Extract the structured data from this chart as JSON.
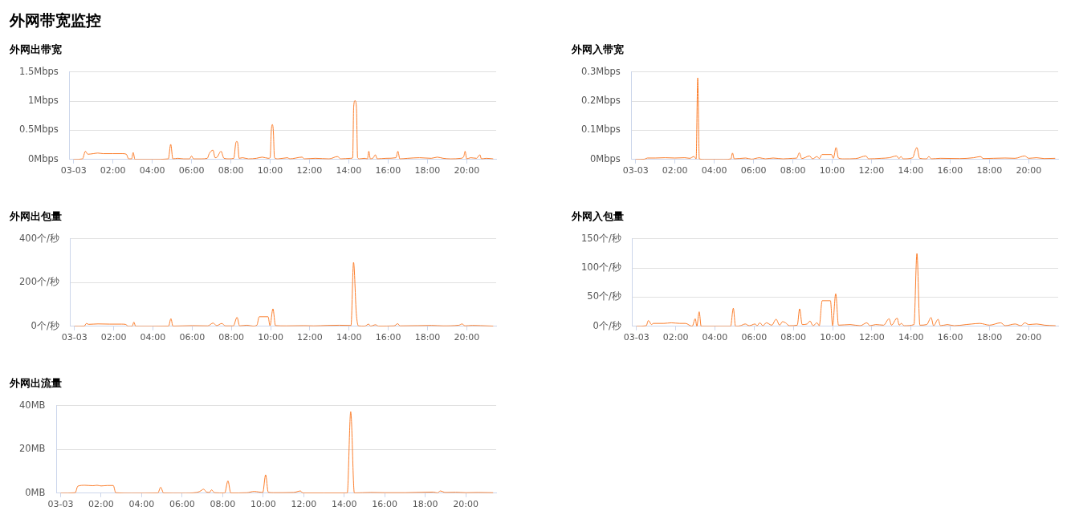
{
  "chart_data": [
    {
      "type": "other",
      "title": "外网带宽监控"
    },
    {
      "type": "line",
      "title": "外网出带宽",
      "color": "#fb7e2c",
      "grid": "y",
      "xlim": [
        -0.2,
        21.5
      ],
      "ylim": [
        0,
        1.5
      ],
      "xticks": [
        {
          "value": 0,
          "label": "03-03"
        },
        {
          "value": 2,
          "label": "02:00"
        },
        {
          "value": 4,
          "label": "04:00"
        },
        {
          "value": 6,
          "label": "06:00"
        },
        {
          "value": 8,
          "label": "08:00"
        },
        {
          "value": 10,
          "label": "10:00"
        },
        {
          "value": 12,
          "label": "12:00"
        },
        {
          "value": 14,
          "label": "14:00"
        },
        {
          "value": 16,
          "label": "16:00"
        },
        {
          "value": 18,
          "label": "18:00"
        },
        {
          "value": 20,
          "label": "20:00"
        }
      ],
      "yticks": [
        {
          "value": 0,
          "label": "0Mbps"
        },
        {
          "value": 0.5,
          "label": "0.5Mbps"
        },
        {
          "value": 1,
          "label": "1Mbps"
        },
        {
          "value": 1.5,
          "label": "1.5Mbps"
        }
      ],
      "x": [
        0,
        0.45,
        0.6,
        0.72,
        1.0,
        1.23,
        1.5,
        2.0,
        2.5,
        2.68,
        2.8,
        2.95,
        3.03,
        3.12,
        4.0,
        4.82,
        4.94,
        5.05,
        5.3,
        5.6,
        5.9,
        6.0,
        6.1,
        6.5,
        6.8,
        6.9,
        7.09,
        7.2,
        7.3,
        7.5,
        7.65,
        7.9,
        8.15,
        8.25,
        8.3,
        8.35,
        8.42,
        8.6,
        8.9,
        9.3,
        9.6,
        9.9,
        10.0,
        10.06,
        10.11,
        10.16,
        10.22,
        10.4,
        10.88,
        11.0,
        11.62,
        11.75,
        12.3,
        13.0,
        13.42,
        13.6,
        14.1,
        14.2,
        14.25,
        14.32,
        14.39,
        14.45,
        14.55,
        14.8,
        14.95,
        15.02,
        15.1,
        15.25,
        15.35,
        15.45,
        15.9,
        16.4,
        16.5,
        16.6,
        17.0,
        17.6,
        18.2,
        18.5,
        18.8,
        19.2,
        19.7,
        19.85,
        19.92,
        20.0,
        20.2,
        20.5,
        20.67,
        20.75,
        21.0,
        21.35
      ],
      "values": [
        0,
        0.01,
        0.14,
        0.09,
        0.1,
        0.11,
        0.1,
        0.1,
        0.1,
        0.09,
        0.01,
        0.01,
        0.12,
        0,
        0,
        0.01,
        0.26,
        0.01,
        0.02,
        0.01,
        0.01,
        0.06,
        0.01,
        0.01,
        0.02,
        0.1,
        0.16,
        0.03,
        0.04,
        0.14,
        0.02,
        0.01,
        0.02,
        0.28,
        0.31,
        0.28,
        0.02,
        0.03,
        0.01,
        0.02,
        0.04,
        0.02,
        0.03,
        0.5,
        0.6,
        0.5,
        0.03,
        0.01,
        0.03,
        0.01,
        0.04,
        0.01,
        0.02,
        0.01,
        0.05,
        0.01,
        0.02,
        0.03,
        0.9,
        1.01,
        0.9,
        0.03,
        0.01,
        0.02,
        0.01,
        0.14,
        0.01,
        0.03,
        0.08,
        0.01,
        0.02,
        0.03,
        0.14,
        0.01,
        0.02,
        0.03,
        0.02,
        0.04,
        0.02,
        0.01,
        0.02,
        0.05,
        0.14,
        0.01,
        0.03,
        0.02,
        0.08,
        0.01,
        0.02,
        0.01
      ]
    },
    {
      "type": "line",
      "title": "外网入带宽",
      "color": "#fb7e2c",
      "grid": "y",
      "xlim": [
        -0.2,
        21.5
      ],
      "ylim": [
        0,
        0.3
      ],
      "xticks": [
        {
          "value": 0,
          "label": "03-03"
        },
        {
          "value": 2,
          "label": "02:00"
        },
        {
          "value": 4,
          "label": "04:00"
        },
        {
          "value": 6,
          "label": "06:00"
        },
        {
          "value": 8,
          "label": "08:00"
        },
        {
          "value": 10,
          "label": "10:00"
        },
        {
          "value": 12,
          "label": "12:00"
        },
        {
          "value": 14,
          "label": "14:00"
        },
        {
          "value": 16,
          "label": "16:00"
        },
        {
          "value": 18,
          "label": "18:00"
        },
        {
          "value": 20,
          "label": "20:00"
        }
      ],
      "yticks": [
        {
          "value": 0,
          "label": "0Mbps"
        },
        {
          "value": 0.1,
          "label": "0.1Mbps"
        },
        {
          "value": 0.2,
          "label": "0.2Mbps"
        },
        {
          "value": 0.3,
          "label": "0.3Mbps"
        }
      ],
      "x": [
        0,
        0.45,
        0.6,
        1.0,
        1.5,
        2.0,
        2.5,
        2.75,
        2.97,
        3.08,
        3.16,
        3.24,
        3.5,
        4.5,
        4.85,
        4.93,
        5.02,
        5.6,
        5.9,
        6.3,
        6.6,
        7.0,
        7.5,
        8.0,
        8.2,
        8.33,
        8.45,
        8.85,
        9.0,
        9.23,
        9.35,
        9.48,
        9.97,
        10.06,
        10.2,
        10.32,
        10.6,
        11.2,
        11.72,
        11.85,
        12.5,
        12.9,
        13.28,
        13.4,
        13.5,
        13.62,
        14.1,
        14.22,
        14.31,
        14.45,
        14.8,
        14.92,
        15.05,
        15.5,
        16.5,
        17.2,
        17.54,
        17.7,
        18.2,
        18.8,
        19.3,
        19.8,
        20.0,
        20.4,
        20.8,
        21.35
      ],
      "values": [
        0,
        0.001,
        0.005,
        0.005,
        0.006,
        0.005,
        0.006,
        0.004,
        0.01,
        0.002,
        0.28,
        0.002,
        0,
        0,
        0.002,
        0.022,
        0.002,
        0.005,
        0.001,
        0.006,
        0.002,
        0.005,
        0.002,
        0.004,
        0.005,
        0.023,
        0.003,
        0.012,
        0.002,
        0.01,
        0.003,
        0.017,
        0.017,
        0.004,
        0.041,
        0.005,
        0.002,
        0.003,
        0.012,
        0.002,
        0.004,
        0.006,
        0.012,
        0.003,
        0.01,
        0.002,
        0.006,
        0.03,
        0.041,
        0.004,
        0.002,
        0.01,
        0.002,
        0.004,
        0.003,
        0.006,
        0.01,
        0.003,
        0.004,
        0.005,
        0.004,
        0.012,
        0.004,
        0.006,
        0.003,
        0.004
      ]
    },
    {
      "type": "line",
      "title": "外网出包量",
      "color": "#fb7e2c",
      "grid": "y",
      "xlim": [
        -0.2,
        21.5
      ],
      "ylim": [
        0,
        400
      ],
      "xticks": [
        {
          "value": 0,
          "label": "03-03"
        },
        {
          "value": 2,
          "label": "02:00"
        },
        {
          "value": 4,
          "label": "04:00"
        },
        {
          "value": 6,
          "label": "06:00"
        },
        {
          "value": 8,
          "label": "08:00"
        },
        {
          "value": 10,
          "label": "10:00"
        },
        {
          "value": 12,
          "label": "12:00"
        },
        {
          "value": 14,
          "label": "14:00"
        },
        {
          "value": 16,
          "label": "16:00"
        },
        {
          "value": 18,
          "label": "18:00"
        },
        {
          "value": 20,
          "label": "20:00"
        }
      ],
      "yticks": [
        {
          "value": 0,
          "label": "0个/秒"
        },
        {
          "value": 200,
          "label": "200个/秒"
        },
        {
          "value": 400,
          "label": "400个/秒"
        }
      ],
      "x": [
        0,
        0.5,
        0.61,
        0.72,
        1.2,
        1.8,
        2.4,
        2.6,
        2.75,
        2.95,
        3.03,
        3.12,
        4.8,
        4.92,
        5.02,
        5.5,
        6.0,
        6.8,
        7.07,
        7.25,
        7.51,
        7.7,
        8.1,
        8.29,
        8.42,
        8.8,
        9.1,
        9.3,
        9.42,
        9.87,
        9.97,
        10.12,
        10.25,
        10.8,
        11.7,
        12.2,
        12.9,
        13.5,
        14.1,
        14.23,
        14.37,
        14.48,
        14.8,
        15.0,
        15.1,
        15.35,
        15.5,
        16.3,
        16.48,
        16.6,
        17.5,
        18.2,
        18.8,
        19.6,
        19.77,
        19.9,
        20.3,
        20.7,
        21.35
      ],
      "values": [
        0,
        1,
        13,
        9,
        11,
        10,
        10,
        9,
        0,
        1,
        19,
        0,
        1,
        35,
        1,
        2,
        3,
        2,
        15,
        3,
        13,
        2,
        2,
        41,
        2,
        5,
        1,
        5,
        44,
        44,
        3,
        80,
        3,
        2,
        3,
        2,
        4,
        5,
        4,
        293,
        59,
        2,
        1,
        10,
        1,
        7,
        1,
        2,
        12,
        2,
        3,
        4,
        2,
        5,
        11,
        2,
        4,
        3,
        1
      ]
    },
    {
      "type": "line",
      "title": "外网入包量",
      "color": "#fb7e2c",
      "grid": "y",
      "xlim": [
        -0.2,
        21.5
      ],
      "ylim": [
        0,
        150
      ],
      "xticks": [
        {
          "value": 0,
          "label": "03-03"
        },
        {
          "value": 2,
          "label": "02:00"
        },
        {
          "value": 4,
          "label": "04:00"
        },
        {
          "value": 6,
          "label": "06:00"
        },
        {
          "value": 8,
          "label": "08:00"
        },
        {
          "value": 10,
          "label": "10:00"
        },
        {
          "value": 12,
          "label": "12:00"
        },
        {
          "value": 14,
          "label": "14:00"
        },
        {
          "value": 16,
          "label": "16:00"
        },
        {
          "value": 18,
          "label": "18:00"
        },
        {
          "value": 20,
          "label": "20:00"
        }
      ],
      "yticks": [
        {
          "value": 0,
          "label": "0个/秒"
        },
        {
          "value": 50,
          "label": "50个/秒"
        },
        {
          "value": 100,
          "label": "100个/秒"
        },
        {
          "value": 150,
          "label": "150个/秒"
        }
      ],
      "x": [
        0,
        0.5,
        0.61,
        0.77,
        0.86,
        1.4,
        1.78,
        2.2,
        2.5,
        2.84,
        3.0,
        3.08,
        3.2,
        3.3,
        4.8,
        4.94,
        5.05,
        5.3,
        5.55,
        5.75,
        6.05,
        6.15,
        6.29,
        6.45,
        6.62,
        6.9,
        7.12,
        7.3,
        7.45,
        7.6,
        7.8,
        8.2,
        8.32,
        8.45,
        8.7,
        8.85,
        9.0,
        9.21,
        9.32,
        9.47,
        9.89,
        10.0,
        10.16,
        10.3,
        10.9,
        11.4,
        11.75,
        11.9,
        12.2,
        12.6,
        12.88,
        13.0,
        13.29,
        13.4,
        13.5,
        13.65,
        14.15,
        14.3,
        14.45,
        14.8,
        15.02,
        15.15,
        15.38,
        15.5,
        15.85,
        16.2,
        16.8,
        17.1,
        17.5,
        18.0,
        18.57,
        18.8,
        19.31,
        19.6,
        19.8,
        20.0,
        20.4,
        20.8,
        21.37
      ],
      "values": [
        0,
        1,
        10,
        3,
        5,
        5,
        6,
        5,
        5,
        0,
        13,
        0,
        25,
        0,
        0,
        31,
        0,
        1,
        4,
        1,
        4,
        1,
        6,
        1,
        6,
        2,
        12,
        2,
        8,
        6,
        1,
        2,
        30,
        3,
        4,
        9,
        1,
        6,
        1,
        44,
        44,
        1,
        56,
        2,
        3,
        1,
        6,
        1,
        3,
        2,
        13,
        2,
        14,
        2,
        5,
        1,
        3,
        125,
        2,
        3,
        15,
        1,
        12,
        1,
        3,
        1,
        3,
        4,
        5,
        2,
        6,
        1,
        4,
        1,
        6,
        3,
        4,
        2,
        1
      ]
    },
    {
      "type": "line",
      "title": "外网出流量",
      "color": "#fb7e2c",
      "grid": "y",
      "xlim": [
        -0.2,
        21.5
      ],
      "ylim": [
        0,
        40
      ],
      "xticks": [
        {
          "value": 0,
          "label": "03-03"
        },
        {
          "value": 2,
          "label": "02:00"
        },
        {
          "value": 4,
          "label": "04:00"
        },
        {
          "value": 6,
          "label": "06:00"
        },
        {
          "value": 8,
          "label": "08:00"
        },
        {
          "value": 10,
          "label": "10:00"
        },
        {
          "value": 12,
          "label": "12:00"
        },
        {
          "value": 14,
          "label": "14:00"
        },
        {
          "value": 16,
          "label": "16:00"
        },
        {
          "value": 18,
          "label": "18:00"
        },
        {
          "value": 20,
          "label": "20:00"
        }
      ],
      "yticks": [
        {
          "value": 0,
          "label": "0MB"
        },
        {
          "value": 20,
          "label": "20MB"
        },
        {
          "value": 40,
          "label": "40MB"
        }
      ],
      "x": [
        0,
        0.72,
        0.85,
        1.2,
        1.6,
        1.8,
        2.0,
        2.3,
        2.6,
        2.72,
        3.5,
        4.8,
        4.94,
        5.08,
        6.0,
        6.7,
        6.87,
        7.06,
        7.2,
        7.35,
        7.45,
        7.6,
        8.1,
        8.26,
        8.4,
        9.2,
        9.55,
        9.8,
        9.98,
        10.12,
        10.25,
        10.5,
        11.5,
        11.84,
        11.95,
        13.0,
        14.15,
        14.32,
        14.5,
        15.31,
        16.0,
        17.0,
        18.39,
        18.6,
        18.74,
        19.0,
        19.5,
        20.0,
        20.6,
        21.35
      ],
      "values": [
        0,
        0.2,
        3.2,
        3.6,
        3.4,
        3.6,
        3.3,
        3.5,
        3.5,
        0.2,
        0,
        0.1,
        2.7,
        0.1,
        0,
        0.3,
        0.8,
        1.8,
        0.5,
        0.3,
        1.5,
        0.2,
        0.1,
        5.6,
        0.1,
        0.2,
        0.8,
        0.5,
        0.3,
        8.4,
        0.4,
        0.2,
        0.3,
        1,
        0.1,
        0.1,
        0.1,
        37.3,
        0.1,
        0.3,
        0.2,
        0.2,
        0.5,
        0.1,
        1,
        0.3,
        0.4,
        0.2,
        0.3,
        0.2
      ]
    }
  ]
}
